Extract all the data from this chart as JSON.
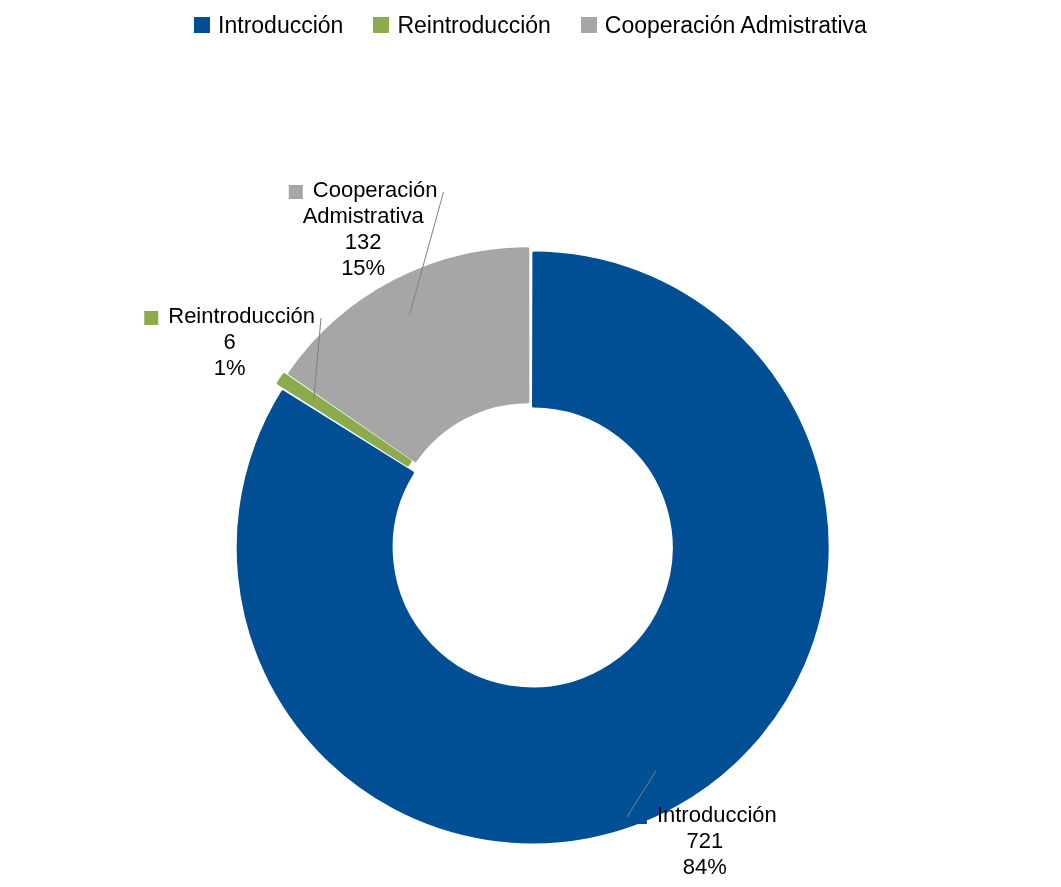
{
  "chart_data": {
    "type": "donut",
    "categories": [
      "Introducción",
      "Reintroducción",
      "Cooperación Admistrativa"
    ],
    "values": [
      721,
      6,
      132
    ],
    "colors": [
      "#004f95",
      "#8bab4c",
      "#a6a6a6"
    ],
    "value_labels": [
      "721\n84%",
      "6\n1%",
      "132\n15%"
    ],
    "legend": "top"
  }
}
